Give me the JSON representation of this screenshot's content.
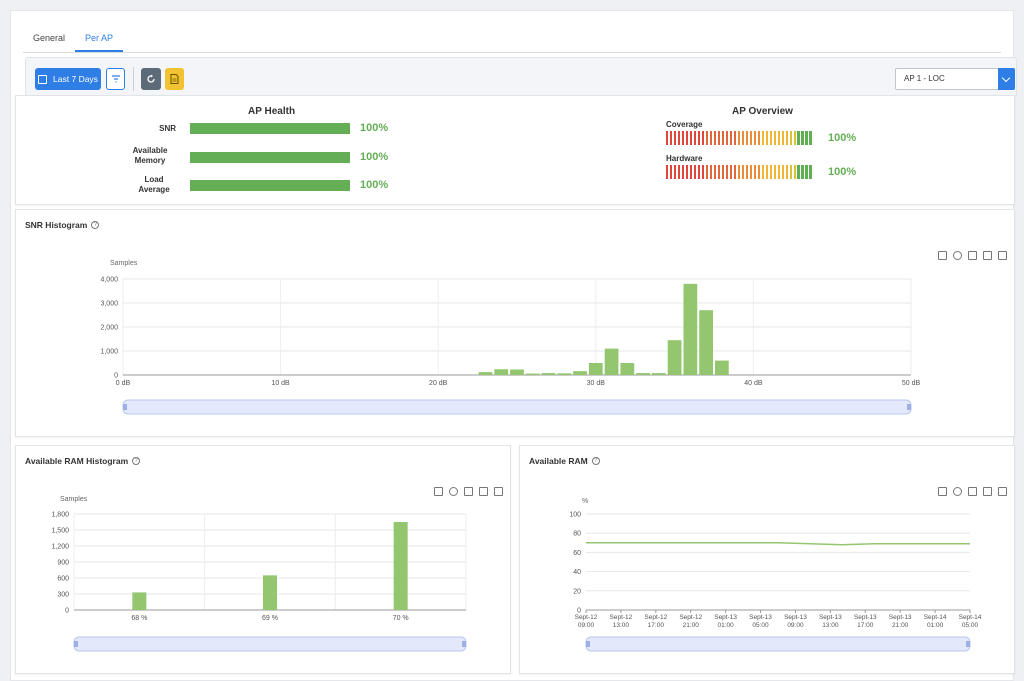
{
  "tabs": [
    {
      "label": "General",
      "active": false
    },
    {
      "label": "Per AP",
      "active": true
    }
  ],
  "toolbar": {
    "date_range_label": "Last 7 Days",
    "ap_select_value": "AP 1 - LOC"
  },
  "ap_health": {
    "title": "AP Health",
    "metrics": [
      {
        "label": "SNR",
        "value_label": "100%",
        "value": 100
      },
      {
        "label": "Available\nMemory",
        "value_label": "100%",
        "value": 100
      },
      {
        "label": "Load\nAverage",
        "value_label": "100%",
        "value": 100
      }
    ]
  },
  "ap_overview": {
    "title": "AP Overview",
    "rows": [
      {
        "label": "Coverage",
        "value_label": "100%"
      },
      {
        "label": "Hardware",
        "value_label": "100%"
      }
    ],
    "colors": [
      "#e0443a",
      "#e3653a",
      "#ea8b3a",
      "#f0b535",
      "#d7c33a",
      "#5fae52"
    ]
  },
  "snr_card": {
    "title": "SNR Histogram"
  },
  "ram_hist_card": {
    "title": "Available RAM Histogram"
  },
  "ram_card": {
    "title": "Available RAM"
  },
  "chart_data": [
    {
      "type": "bar",
      "ylabel": "Samples",
      "xlabel": "",
      "ylim": [
        0,
        4000
      ],
      "xlim": [
        0,
        50
      ],
      "yticks": [
        "0",
        "1,000",
        "2,000",
        "3,000",
        "4,000"
      ],
      "xticks": [
        "0 dB",
        "10 dB",
        "20 dB",
        "30 dB",
        "40 dB",
        "50 dB"
      ],
      "x": [
        23,
        24,
        25,
        26,
        27,
        28,
        29,
        30,
        31,
        32,
        33,
        34,
        35,
        36,
        37,
        38
      ],
      "values": [
        120,
        240,
        230,
        60,
        80,
        70,
        160,
        500,
        1100,
        500,
        80,
        80,
        1450,
        3800,
        2700,
        600
      ],
      "color": "#94c66f"
    },
    {
      "type": "bar",
      "ylabel": "Samples",
      "ylim": [
        0,
        1800
      ],
      "yticks": [
        "0",
        "300",
        "600",
        "900",
        "1,200",
        "1,500",
        "1,800"
      ],
      "categories": [
        "68 %",
        "69 %",
        "70 %"
      ],
      "values": [
        330,
        650,
        1650
      ],
      "color": "#94c66f"
    },
    {
      "type": "line",
      "ylabel": "%",
      "ylim": [
        0,
        100
      ],
      "yticks": [
        "0",
        "20",
        "40",
        "60",
        "80",
        "100"
      ],
      "xticks": [
        [
          "Sept-12",
          "09:00"
        ],
        [
          "Sept-12",
          "13:00"
        ],
        [
          "Sept-12",
          "17:00"
        ],
        [
          "Sept-12",
          "21:00"
        ],
        [
          "Sept-13",
          "01:00"
        ],
        [
          "Sept-13",
          "05:00"
        ],
        [
          "Sept-13",
          "09:00"
        ],
        [
          "Sept-13",
          "13:00"
        ],
        [
          "Sept-13",
          "17:00"
        ],
        [
          "Sept-13",
          "21:00"
        ],
        [
          "Sept-14",
          "01:00"
        ],
        [
          "Sept-14",
          "05:00"
        ]
      ],
      "series": [
        {
          "values": [
            70,
            70,
            70,
            70,
            70,
            70,
            70,
            69,
            68,
            69,
            69,
            69,
            69
          ]
        }
      ],
      "color": "#94c66f"
    }
  ]
}
